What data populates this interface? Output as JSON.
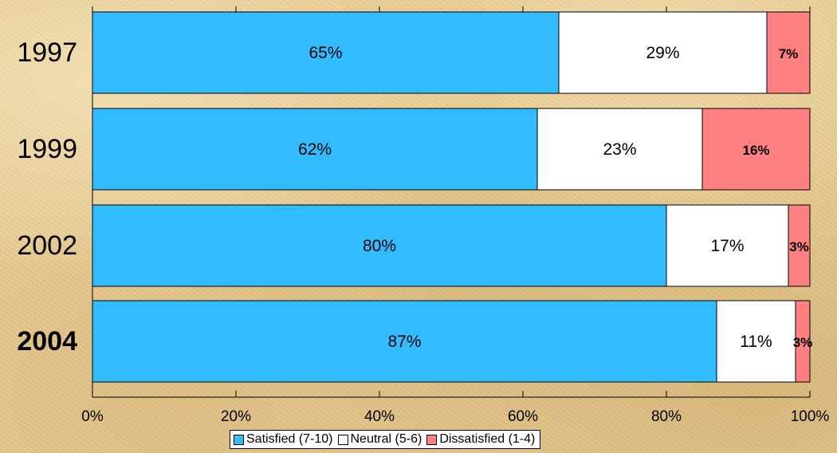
{
  "chart_data": {
    "type": "bar",
    "orientation": "horizontal",
    "stacked": true,
    "categories": [
      "1997",
      "1999",
      "2002",
      "2004"
    ],
    "bold_categories": [
      "2004"
    ],
    "series": [
      {
        "name": "Satisfied (7-10)",
        "color": "#33bbff",
        "values": [
          65,
          62,
          80,
          87
        ],
        "labels": [
          "65%",
          "62%",
          "80%",
          "87%"
        ],
        "bold": false
      },
      {
        "name": "Neutral (5-6)",
        "color": "#ffffff",
        "values": [
          29,
          23,
          17,
          11
        ],
        "labels": [
          "29%",
          "23%",
          "17%",
          "11%"
        ],
        "bold": false
      },
      {
        "name": "Dissatisfied (1-4)",
        "color": "#ff8080",
        "values": [
          7,
          16,
          3,
          3
        ],
        "labels": [
          "7%",
          "16%",
          "3%",
          "3%"
        ],
        "bold": true
      }
    ],
    "xlim": [
      0,
      100
    ],
    "x_ticks": [
      0,
      20,
      40,
      60,
      80,
      100
    ],
    "x_tick_labels": [
      "0%",
      "20%",
      "40%",
      "60%",
      "80%",
      "100%"
    ],
    "grid": false,
    "legend_position": "bottom",
    "title": "",
    "xlabel": "",
    "ylabel": ""
  }
}
